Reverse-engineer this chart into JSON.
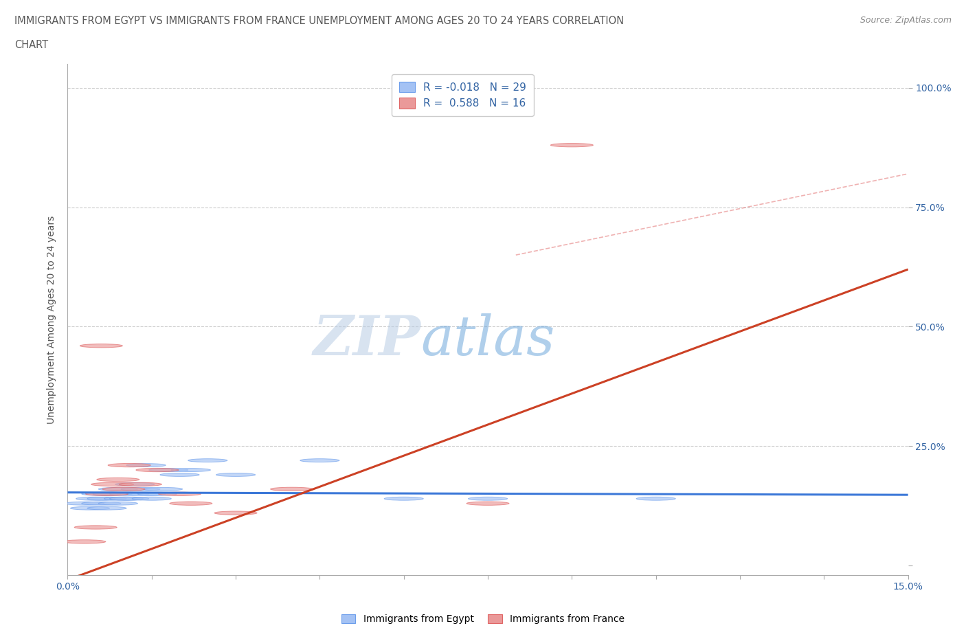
{
  "title_line1": "IMMIGRANTS FROM EGYPT VS IMMIGRANTS FROM FRANCE UNEMPLOYMENT AMONG AGES 20 TO 24 YEARS CORRELATION",
  "title_line2": "CHART",
  "source": "Source: ZipAtlas.com",
  "ylabel": "Unemployment Among Ages 20 to 24 years",
  "xlim": [
    0.0,
    0.15
  ],
  "ylim": [
    -0.02,
    1.05
  ],
  "egypt_R": -0.018,
  "egypt_N": 29,
  "france_R": 0.588,
  "france_N": 16,
  "egypt_color": "#a4c2f4",
  "france_color": "#ea9999",
  "egypt_edge_color": "#6d9eeb",
  "france_edge_color": "#e06666",
  "egypt_line_color": "#3c78d8",
  "france_line_color": "#cc4125",
  "trend_dash_color": "#e06666",
  "grid_color": "#cccccc",
  "tick_color": "#3465a4",
  "title_color": "#595959",
  "source_color": "#888888",
  "watermark_color_zip": "#b8cce4",
  "watermark_color_atlas": "#6fa8dc",
  "egypt_x": [
    0.003,
    0.004,
    0.005,
    0.006,
    0.006,
    0.007,
    0.007,
    0.008,
    0.009,
    0.009,
    0.01,
    0.011,
    0.011,
    0.012,
    0.013,
    0.014,
    0.014,
    0.015,
    0.016,
    0.017,
    0.018,
    0.02,
    0.022,
    0.025,
    0.03,
    0.045,
    0.06,
    0.075,
    0.105
  ],
  "egypt_y": [
    0.13,
    0.12,
    0.14,
    0.13,
    0.15,
    0.12,
    0.14,
    0.15,
    0.13,
    0.16,
    0.14,
    0.15,
    0.14,
    0.17,
    0.16,
    0.21,
    0.15,
    0.14,
    0.15,
    0.16,
    0.2,
    0.19,
    0.2,
    0.22,
    0.19,
    0.22,
    0.14,
    0.14,
    0.14
  ],
  "france_x": [
    0.003,
    0.005,
    0.006,
    0.007,
    0.008,
    0.009,
    0.01,
    0.011,
    0.013,
    0.016,
    0.02,
    0.022,
    0.03,
    0.04,
    0.075,
    0.09
  ],
  "france_y": [
    0.05,
    0.08,
    0.46,
    0.15,
    0.17,
    0.18,
    0.16,
    0.21,
    0.17,
    0.2,
    0.15,
    0.13,
    0.11,
    0.16,
    0.13,
    0.88
  ],
  "egypt_line_y0": 0.153,
  "egypt_line_y1": 0.148,
  "france_line_y0": -0.03,
  "france_line_y1": 0.62,
  "dash_line_y0": 0.65,
  "dash_line_y1": 0.82,
  "dash_line_x0": 0.08,
  "dash_line_x1": 0.15,
  "legend_egypt_label": "Immigrants from Egypt",
  "legend_france_label": "Immigrants from France"
}
